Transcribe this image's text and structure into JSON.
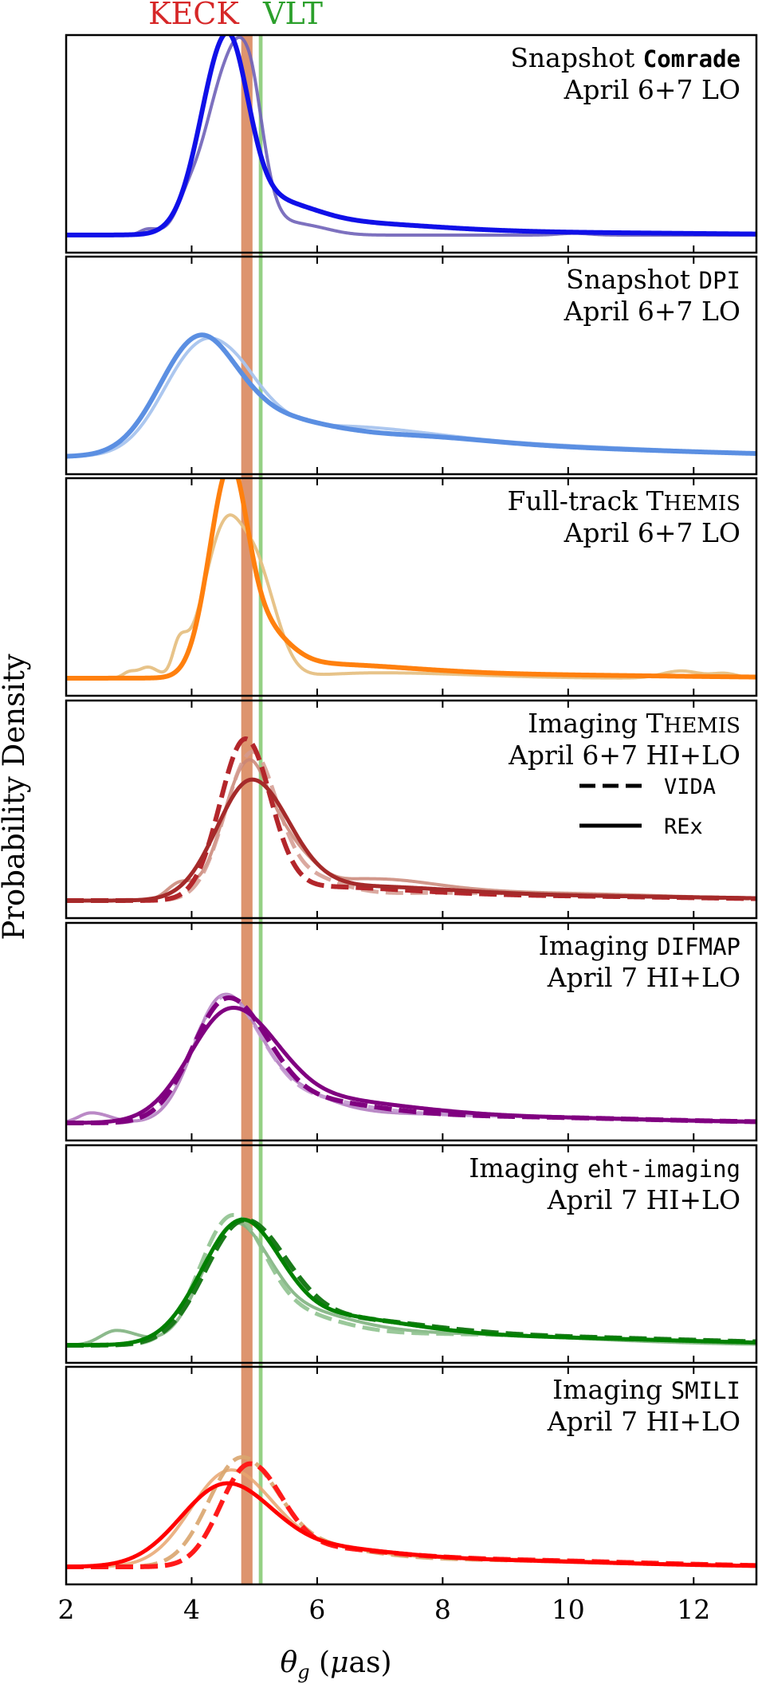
{
  "chart_data": {
    "type": "line",
    "ylabel": "Probability Density",
    "xlabel_symbol": "θ",
    "xlabel_sub": "g",
    "xlabel_unit_open": " (",
    "xlabel_unit_mu": "μ",
    "xlabel_unit_rest": "as)",
    "xlim": [
      2,
      13
    ],
    "xticks": [
      2,
      4,
      6,
      8,
      10,
      12
    ],
    "references": [
      {
        "name": "KECK",
        "label": "KECK",
        "value": 4.88,
        "width": 0.18,
        "color": "#d9885e",
        "opacity": 0.9,
        "label_color": "#d62728"
      },
      {
        "name": "VLT",
        "label": "VLT",
        "value": 5.1,
        "width": 0.06,
        "color": "#8fcf7e",
        "opacity": 0.95,
        "label_color": "#2ca02c"
      }
    ],
    "legend": {
      "panel": 3,
      "entries": [
        {
          "label": "VIDA",
          "style": "dashed"
        },
        {
          "label": "REx",
          "style": "solid"
        }
      ]
    },
    "panels": [
      {
        "title_pre": "Snapshot ",
        "title_code": "Comrade",
        "title_post": "",
        "subtitle": "April 6+7 LO",
        "ymax": 1.08,
        "series": [
          {
            "name": "April 6 (faded)",
            "color": "#6f62b8",
            "style": "solid",
            "opacity": 0.9,
            "width": 4,
            "components": [
              {
                "a": 0.03,
                "mu": 3.3,
                "sl": 0.12,
                "sr": 0.15
              },
              {
                "a": 0.06,
                "mu": 3.9,
                "sl": 0.15,
                "sr": 0.15
              },
              {
                "a": 0.71,
                "mu": 4.5,
                "sl": 0.38,
                "sr": 0.45
              },
              {
                "a": 0.55,
                "mu": 4.9,
                "sl": 0.3,
                "sr": 0.22
              },
              {
                "a": 0.05,
                "mu": 5.8,
                "sl": 0.3,
                "sr": 0.4
              },
              {
                "a": 0.01,
                "mu": 10.1,
                "sl": 0.25,
                "sr": 0.25
              }
            ]
          },
          {
            "name": "April 6+7 combined",
            "color": "#1010e8",
            "style": "solid",
            "opacity": 1,
            "width": 6,
            "components": [
              {
                "a": 1.0,
                "mu": 4.55,
                "sl": 0.4,
                "sr": 0.33
              },
              {
                "a": 0.16,
                "mu": 5.1,
                "sl": 0.6,
                "sr": 0.7
              },
              {
                "a": 0.06,
                "mu": 6.2,
                "sl": 0.9,
                "sr": 1.5
              },
              {
                "a": 0.015,
                "mu": 9.0,
                "sl": 2.5,
                "sr": 3.0
              }
            ]
          }
        ]
      },
      {
        "title_pre": "Snapshot ",
        "title_code": "DPI",
        "title_post": "",
        "subtitle": "April 6+7 LO",
        "ymax": 1.45,
        "series": [
          {
            "name": "April 6 (faded)",
            "color": "#a8c4ee",
            "style": "solid",
            "opacity": 0.95,
            "width": 4,
            "components": [
              {
                "a": 0.8,
                "mu": 4.15,
                "sl": 0.6,
                "sr": 0.55
              },
              {
                "a": 0.25,
                "mu": 4.9,
                "sl": 0.4,
                "sr": 0.5
              },
              {
                "a": 0.18,
                "mu": 6.0,
                "sl": 0.8,
                "sr": 1.5
              },
              {
                "a": 0.09,
                "mu": 8.5,
                "sl": 2.0,
                "sr": 2.8
              }
            ]
          },
          {
            "name": "April 6+7 combined",
            "color": "#5b8fe2",
            "style": "solid",
            "opacity": 1,
            "width": 6,
            "components": [
              {
                "a": 0.85,
                "mu": 4.1,
                "sl": 0.62,
                "sr": 0.58
              },
              {
                "a": 0.23,
                "mu": 5.2,
                "sl": 0.6,
                "sr": 0.8
              },
              {
                "a": 0.12,
                "mu": 6.8,
                "sl": 1.0,
                "sr": 1.5
              },
              {
                "a": 0.065,
                "mu": 9.0,
                "sl": 2.0,
                "sr": 2.8
              }
            ]
          }
        ]
      },
      {
        "title_pre": "Full-track ",
        "title_code": "",
        "title_post": "THEMIS",
        "subtitle": "April 6+7 LO",
        "ymax": 1.08,
        "series": [
          {
            "name": "April 6 (faded)",
            "color": "#e6c083",
            "style": "solid",
            "opacity": 0.95,
            "width": 4,
            "components": [
              {
                "a": 0.03,
                "mu": 3.0,
                "sl": 0.1,
                "sr": 0.1
              },
              {
                "a": 0.06,
                "mu": 3.3,
                "sl": 0.15,
                "sr": 0.15
              },
              {
                "a": 0.15,
                "mu": 3.8,
                "sl": 0.1,
                "sr": 0.12
              },
              {
                "a": 0.85,
                "mu": 4.55,
                "sl": 0.35,
                "sr": 0.32
              },
              {
                "a": 0.45,
                "mu": 5.1,
                "sl": 0.25,
                "sr": 0.3
              },
              {
                "a": 0.03,
                "mu": 7.0,
                "sl": 1.0,
                "sr": 1.5
              },
              {
                "a": 0.04,
                "mu": 11.8,
                "sl": 0.3,
                "sr": 0.3
              },
              {
                "a": 0.025,
                "mu": 12.5,
                "sl": 0.2,
                "sr": 0.2
              }
            ]
          },
          {
            "name": "April 6+7 combined",
            "color": "#ff800e",
            "style": "solid",
            "opacity": 1,
            "width": 6,
            "components": [
              {
                "a": 1.0,
                "mu": 4.58,
                "sl": 0.32,
                "sr": 0.27
              },
              {
                "a": 0.3,
                "mu": 4.95,
                "sl": 0.35,
                "sr": 0.45
              },
              {
                "a": 0.07,
                "mu": 5.8,
                "sl": 0.6,
                "sr": 1.5
              },
              {
                "a": 0.02,
                "mu": 8.5,
                "sl": 2.0,
                "sr": 3.0
              }
            ]
          }
        ]
      },
      {
        "title_pre": "Imaging ",
        "title_code": "",
        "title_post": "THEMIS",
        "subtitle": "April 6+7 HI+LO",
        "ymax": 1.25,
        "series": [
          {
            "name": "REx faded",
            "color": "#c98576",
            "style": "solid",
            "opacity": 0.85,
            "width": 4,
            "components": [
              {
                "a": 0.1,
                "mu": 3.8,
                "sl": 0.2,
                "sr": 0.2
              },
              {
                "a": 0.88,
                "mu": 4.9,
                "sl": 0.4,
                "sr": 0.35
              },
              {
                "a": 0.28,
                "mu": 5.6,
                "sl": 0.3,
                "sr": 0.4
              },
              {
                "a": 0.12,
                "mu": 6.8,
                "sl": 0.6,
                "sr": 1.0
              },
              {
                "a": 0.05,
                "mu": 9.0,
                "sl": 1.5,
                "sr": 2.5
              }
            ]
          },
          {
            "name": "VIDA faded",
            "color": "#d49a8f",
            "style": "dashed",
            "opacity": 0.85,
            "width": 5,
            "components": [
              {
                "a": 0.92,
                "mu": 4.95,
                "sl": 0.42,
                "sr": 0.38
              },
              {
                "a": 0.15,
                "mu": 5.7,
                "sl": 0.4,
                "sr": 0.6
              },
              {
                "a": 0.05,
                "mu": 8.0,
                "sl": 1.5,
                "sr": 3.0
              }
            ]
          },
          {
            "name": "VIDA",
            "color": "#b3262b",
            "style": "dashed",
            "opacity": 1,
            "width": 6,
            "components": [
              {
                "a": 1.0,
                "mu": 4.85,
                "sl": 0.4,
                "sr": 0.4
              },
              {
                "a": 0.08,
                "mu": 5.8,
                "sl": 0.7,
                "sr": 1.5
              },
              {
                "a": 0.03,
                "mu": 9.0,
                "sl": 2.0,
                "sr": 3.0
              }
            ]
          },
          {
            "name": "REx",
            "color": "#a52a2a",
            "style": "solid",
            "opacity": 1,
            "width": 5,
            "components": [
              {
                "a": 0.76,
                "mu": 4.95,
                "sl": 0.55,
                "sr": 0.6
              },
              {
                "a": 0.08,
                "mu": 6.5,
                "sl": 0.8,
                "sr": 1.5
              },
              {
                "a": 0.03,
                "mu": 9.5,
                "sl": 2.0,
                "sr": 3.0
              }
            ]
          }
        ]
      },
      {
        "title_pre": "Imaging ",
        "title_code": "DIFMAP",
        "title_post": "",
        "subtitle": "April 7 HI+LO",
        "ymax": 1.55,
        "series": [
          {
            "name": "REx faded",
            "color": "#b37cc0",
            "style": "solid",
            "opacity": 0.9,
            "width": 4,
            "components": [
              {
                "a": 0.08,
                "mu": 2.4,
                "sl": 0.2,
                "sr": 0.3
              },
              {
                "a": 0.9,
                "mu": 4.45,
                "sl": 0.45,
                "sr": 0.5
              },
              {
                "a": 0.3,
                "mu": 5.2,
                "sl": 0.5,
                "sr": 0.8
              },
              {
                "a": 0.07,
                "mu": 7.5,
                "sl": 1.5,
                "sr": 2.5
              }
            ]
          },
          {
            "name": "VIDA faded",
            "color": "#c39ad0",
            "style": "dashed",
            "opacity": 0.9,
            "width": 5,
            "components": [
              {
                "a": 0.95,
                "mu": 4.5,
                "sl": 0.5,
                "sr": 0.55
              },
              {
                "a": 0.2,
                "mu": 5.5,
                "sl": 0.6,
                "sr": 1.0
              },
              {
                "a": 0.06,
                "mu": 8.0,
                "sl": 1.5,
                "sr": 2.5
              }
            ]
          },
          {
            "name": "VIDA",
            "color": "#800080",
            "style": "dashed",
            "opacity": 1,
            "width": 6,
            "components": [
              {
                "a": 0.95,
                "mu": 4.55,
                "sl": 0.55,
                "sr": 0.6
              },
              {
                "a": 0.18,
                "mu": 5.6,
                "sl": 0.6,
                "sr": 1.2
              },
              {
                "a": 0.05,
                "mu": 8.5,
                "sl": 1.5,
                "sr": 2.5
              }
            ]
          },
          {
            "name": "REx",
            "color": "#800080",
            "style": "solid",
            "opacity": 1,
            "width": 5,
            "components": [
              {
                "a": 0.85,
                "mu": 4.6,
                "sl": 0.65,
                "sr": 0.7
              },
              {
                "a": 0.18,
                "mu": 5.8,
                "sl": 0.8,
                "sr": 1.4
              },
              {
                "a": 0.05,
                "mu": 8.5,
                "sl": 1.5,
                "sr": 2.5
              }
            ]
          }
        ]
      },
      {
        "title_pre": "Imaging ",
        "title_code": "eht-imaging",
        "title_post": "",
        "subtitle": "April 7 HI+LO",
        "ymax": 1.6,
        "series": [
          {
            "name": "REx faded",
            "color": "#7fb27f",
            "style": "solid",
            "opacity": 0.9,
            "width": 4,
            "components": [
              {
                "a": 0.12,
                "mu": 2.8,
                "sl": 0.25,
                "sr": 0.35
              },
              {
                "a": 0.92,
                "mu": 4.65,
                "sl": 0.5,
                "sr": 0.5
              },
              {
                "a": 0.25,
                "mu": 5.5,
                "sl": 0.5,
                "sr": 0.9
              },
              {
                "a": 0.1,
                "mu": 7.5,
                "sl": 1.5,
                "sr": 2.5
              }
            ]
          },
          {
            "name": "VIDA faded",
            "color": "#8fc28f",
            "style": "dashed",
            "opacity": 0.9,
            "width": 5,
            "components": [
              {
                "a": 0.95,
                "mu": 4.6,
                "sl": 0.5,
                "sr": 0.5
              },
              {
                "a": 0.25,
                "mu": 5.4,
                "sl": 0.6,
                "sr": 0.9
              },
              {
                "a": 0.09,
                "mu": 8.0,
                "sl": 1.5,
                "sr": 2.5
              }
            ]
          },
          {
            "name": "VIDA",
            "color": "#1a7a1a",
            "style": "dashed",
            "opacity": 1,
            "width": 6,
            "components": [
              {
                "a": 0.95,
                "mu": 4.8,
                "sl": 0.6,
                "sr": 0.65
              },
              {
                "a": 0.2,
                "mu": 6.0,
                "sl": 0.8,
                "sr": 1.5
              },
              {
                "a": 0.07,
                "mu": 9.0,
                "sl": 2.0,
                "sr": 3.0
              }
            ]
          },
          {
            "name": "REx",
            "color": "#008000",
            "style": "solid",
            "opacity": 1,
            "width": 5,
            "components": [
              {
                "a": 0.92,
                "mu": 4.75,
                "sl": 0.62,
                "sr": 0.6
              },
              {
                "a": 0.22,
                "mu": 5.8,
                "sl": 0.8,
                "sr": 1.4
              },
              {
                "a": 0.07,
                "mu": 8.5,
                "sl": 2.0,
                "sr": 3.0
              }
            ]
          }
        ]
      },
      {
        "title_pre": "Imaging ",
        "title_code": "SMILI",
        "title_post": "",
        "subtitle": "April 7 HI+LO",
        "ymax": 1.65,
        "series": [
          {
            "name": "REx faded",
            "color": "#e7a56e",
            "style": "solid",
            "opacity": 0.85,
            "width": 4,
            "components": [
              {
                "a": 0.75,
                "mu": 4.55,
                "sl": 0.6,
                "sr": 0.6
              },
              {
                "a": 0.2,
                "mu": 5.5,
                "sl": 0.6,
                "sr": 1.0
              },
              {
                "a": 0.07,
                "mu": 8.0,
                "sl": 1.5,
                "sr": 2.5
              }
            ]
          },
          {
            "name": "VIDA faded",
            "color": "#d9a56e",
            "style": "dashed",
            "opacity": 0.9,
            "width": 5,
            "components": [
              {
                "a": 0.85,
                "mu": 4.75,
                "sl": 0.5,
                "sr": 0.55
              },
              {
                "a": 0.18,
                "mu": 5.6,
                "sl": 0.6,
                "sr": 1.0
              },
              {
                "a": 0.06,
                "mu": 8.0,
                "sl": 1.5,
                "sr": 2.5
              }
            ]
          },
          {
            "name": "VIDA",
            "color": "#ff1a1a",
            "style": "dashed",
            "opacity": 1,
            "width": 6,
            "components": [
              {
                "a": 0.8,
                "mu": 4.9,
                "sl": 0.45,
                "sr": 0.5
              },
              {
                "a": 0.15,
                "mu": 5.8,
                "sl": 0.7,
                "sr": 1.2
              },
              {
                "a": 0.06,
                "mu": 8.5,
                "sl": 1.5,
                "sr": 2.5
              }
            ]
          },
          {
            "name": "REx",
            "color": "#ff0000",
            "style": "solid",
            "opacity": 1,
            "width": 5,
            "components": [
              {
                "a": 0.65,
                "mu": 4.5,
                "sl": 0.7,
                "sr": 0.7
              },
              {
                "a": 0.15,
                "mu": 5.7,
                "sl": 0.8,
                "sr": 1.2
              },
              {
                "a": 0.06,
                "mu": 8.0,
                "sl": 1.5,
                "sr": 2.5
              }
            ]
          }
        ]
      }
    ]
  }
}
